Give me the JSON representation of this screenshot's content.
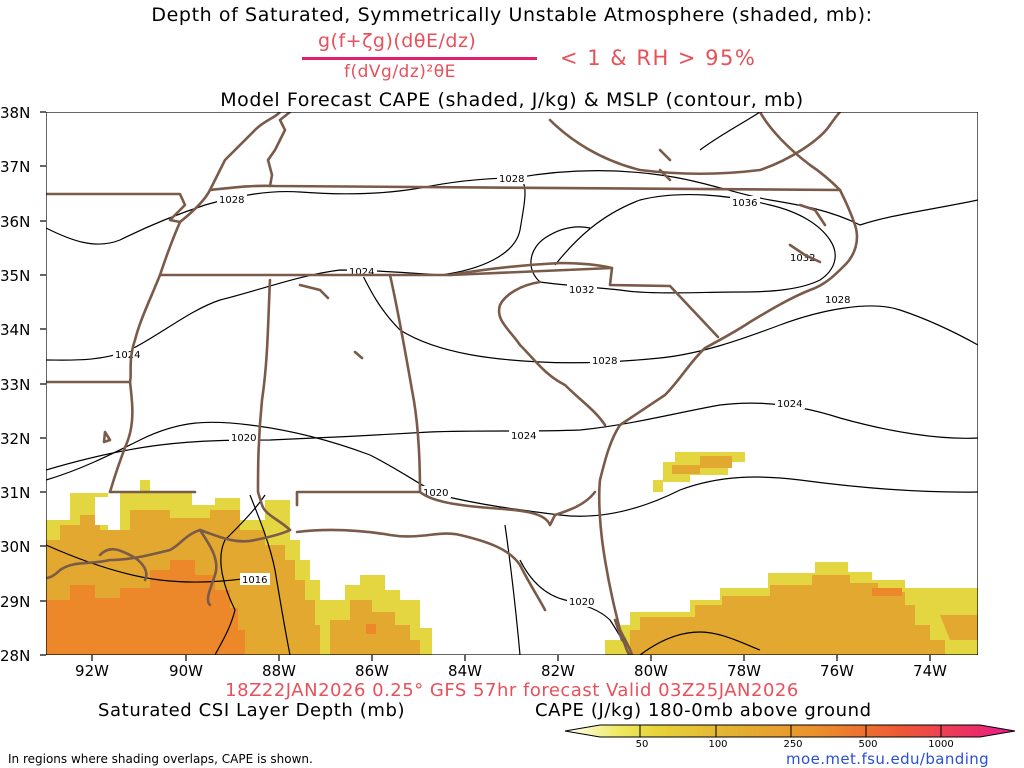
{
  "titles": {
    "line1": "Depth of Saturated, Symmetrically Unstable Atmosphere (shaded, mb):",
    "formula_numerator": "g(f+ζg)(dθE/dz)",
    "formula_denominator": "f(dVg/dz)²θE",
    "formula_condition": "< 1 & RH > 95%",
    "line2": "Model Forecast CAPE (shaded, J/kg) & MSLP (contour, mb)",
    "valid_line": "18Z22JAN2026 0.25° GFS 57hr forecast Valid 03Z25JAN2026",
    "csi_label": "Saturated CSI Layer Depth (mb)",
    "cape_label": "CAPE (J/kg) 180-0mb above ground",
    "footnote": "In regions where shading overlaps, CAPE is shown.",
    "credit": "moe.met.fsu.edu/banding"
  },
  "map": {
    "region": "Southeastern United States",
    "lat_labels": [
      "38N",
      "37N",
      "36N",
      "35N",
      "34N",
      "33N",
      "32N",
      "31N",
      "30N",
      "29N",
      "28N"
    ],
    "lon_labels": [
      "92W",
      "90W",
      "88W",
      "86W",
      "84W",
      "82W",
      "80W",
      "78W",
      "76W",
      "74W"
    ],
    "contour_labels": [
      "1028",
      "1028",
      "1036",
      "1032",
      "1024",
      "1032",
      "1028",
      "1024",
      "1028",
      "1024",
      "1020",
      "1024",
      "1020",
      "1016",
      "1020"
    ],
    "colors": {
      "boundaries": "#7a5a48",
      "contours": "#000000",
      "cape_50": "#e6d633",
      "cape_100": "#e3a62e",
      "cape_250": "#ec8a2a"
    }
  },
  "colorbar": {
    "ticks": [
      "50",
      "100",
      "250",
      "500",
      "1000"
    ],
    "colors": [
      "#ffffff",
      "#e8e04a",
      "#e3b030",
      "#ee8a2a",
      "#ef4a3a",
      "#e8188a"
    ]
  }
}
